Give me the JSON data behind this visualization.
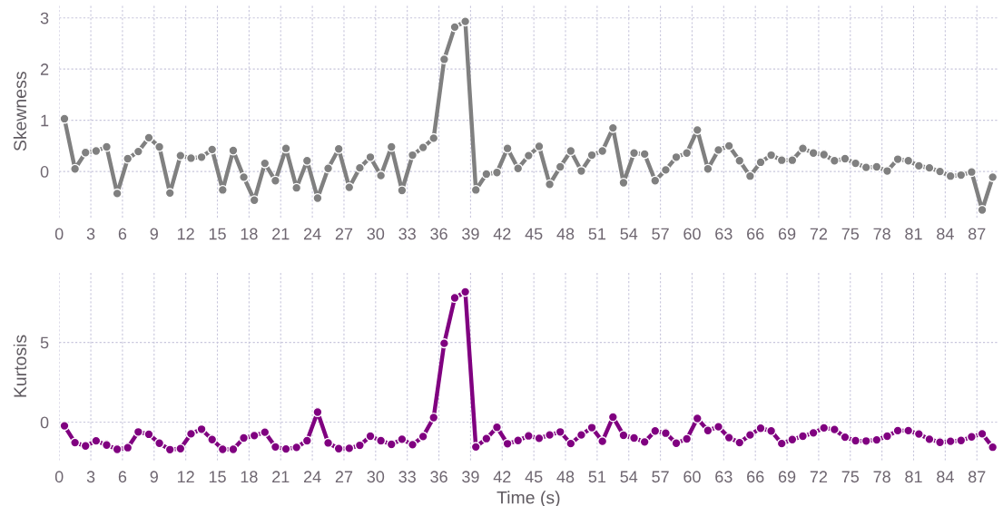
{
  "chart_data": [
    {
      "type": "line",
      "ylabel": "Skewness",
      "xlim": [
        0,
        89
      ],
      "xticks": [
        0,
        3,
        6,
        9,
        12,
        15,
        18,
        21,
        24,
        27,
        30,
        33,
        36,
        39,
        42,
        45,
        48,
        51,
        54,
        57,
        60,
        63,
        66,
        69,
        72,
        75,
        78,
        81,
        84,
        87
      ],
      "ylim": [
        -0.9,
        3.25
      ],
      "yticks": [
        0,
        1,
        2,
        3
      ],
      "grid": true,
      "marker": "circle",
      "line_style": "solid",
      "x": [
        0.5,
        1.5,
        2.5,
        3.5,
        4.5,
        5.5,
        6.5,
        7.5,
        8.5,
        9.5,
        10.5,
        11.5,
        12.5,
        13.5,
        14.5,
        15.5,
        16.5,
        17.5,
        18.5,
        19.5,
        20.5,
        21.5,
        22.5,
        23.5,
        24.5,
        25.5,
        26.5,
        27.5,
        28.5,
        29.5,
        30.5,
        31.5,
        32.5,
        33.5,
        34.5,
        35.5,
        36.5,
        37.5,
        38.5,
        39.5,
        40.5,
        41.5,
        42.5,
        43.5,
        44.5,
        45.5,
        46.5,
        47.5,
        48.5,
        49.5,
        50.5,
        51.5,
        52.5,
        53.5,
        54.5,
        55.5,
        56.5,
        57.5,
        58.5,
        59.5,
        60.5,
        61.5,
        62.5,
        63.5,
        64.5,
        65.5,
        66.5,
        67.5,
        68.5,
        69.5,
        70.5,
        71.5,
        72.5,
        73.5,
        74.5,
        75.5,
        76.5,
        77.5,
        78.5,
        79.5,
        80.5,
        81.5,
        82.5,
        83.5,
        84.5,
        85.5,
        86.5,
        87.5,
        88.5
      ],
      "series": [
        {
          "color": "#808080",
          "values": [
            1.03,
            0.05,
            0.37,
            0.4,
            0.48,
            -0.43,
            0.25,
            0.39,
            0.66,
            0.48,
            -0.42,
            0.31,
            0.26,
            0.28,
            0.43,
            -0.36,
            0.41,
            -0.11,
            -0.56,
            0.16,
            -0.18,
            0.45,
            -0.32,
            0.21,
            -0.52,
            0.06,
            0.44,
            -0.31,
            0.07,
            0.28,
            -0.08,
            0.48,
            -0.37,
            0.32,
            0.47,
            0.65,
            2.19,
            2.82,
            2.93,
            -0.36,
            -0.05,
            -0.02,
            0.45,
            0.06,
            0.31,
            0.49,
            -0.25,
            0.09,
            0.4,
            0.01,
            0.32,
            0.4,
            0.85,
            -0.22,
            0.36,
            0.34,
            -0.18,
            0.03,
            0.28,
            0.36,
            0.81,
            0.05,
            0.42,
            0.5,
            0.21,
            -0.09,
            0.18,
            0.32,
            0.22,
            0.22,
            0.45,
            0.36,
            0.33,
            0.21,
            0.25,
            0.16,
            0.08,
            0.09,
            0.01,
            0.24,
            0.21,
            0.11,
            0.07,
            0.0,
            -0.09,
            -0.07,
            -0.01,
            -0.75,
            -0.11
          ]
        }
      ]
    },
    {
      "type": "line",
      "xlabel": "Time (s)",
      "ylabel": "Kurtosis",
      "xlim": [
        0,
        89
      ],
      "xticks": [
        0,
        3,
        6,
        9,
        12,
        15,
        18,
        21,
        24,
        27,
        30,
        33,
        36,
        39,
        42,
        45,
        48,
        51,
        54,
        57,
        60,
        63,
        66,
        69,
        72,
        75,
        78,
        81,
        84,
        87
      ],
      "ylim": [
        -2.4,
        9.4
      ],
      "yticks": [
        0,
        5
      ],
      "grid": true,
      "marker": "circle",
      "line_style": "solid",
      "x": [
        0.5,
        1.5,
        2.5,
        3.5,
        4.5,
        5.5,
        6.5,
        7.5,
        8.5,
        9.5,
        10.5,
        11.5,
        12.5,
        13.5,
        14.5,
        15.5,
        16.5,
        17.5,
        18.5,
        19.5,
        20.5,
        21.5,
        22.5,
        23.5,
        24.5,
        25.5,
        26.5,
        27.5,
        28.5,
        29.5,
        30.5,
        31.5,
        32.5,
        33.5,
        34.5,
        35.5,
        36.5,
        37.5,
        38.5,
        39.5,
        40.5,
        41.5,
        42.5,
        43.5,
        44.5,
        45.5,
        46.5,
        47.5,
        48.5,
        49.5,
        50.5,
        51.5,
        52.5,
        53.5,
        54.5,
        55.5,
        56.5,
        57.5,
        58.5,
        59.5,
        60.5,
        61.5,
        62.5,
        63.5,
        64.5,
        65.5,
        66.5,
        67.5,
        68.5,
        69.5,
        70.5,
        71.5,
        72.5,
        73.5,
        74.5,
        75.5,
        76.5,
        77.5,
        78.5,
        79.5,
        80.5,
        81.5,
        82.5,
        83.5,
        84.5,
        85.5,
        86.5,
        87.5,
        88.5
      ],
      "series": [
        {
          "color": "#800080",
          "values": [
            -0.23,
            -1.28,
            -1.49,
            -1.17,
            -1.43,
            -1.7,
            -1.6,
            -0.61,
            -0.76,
            -1.32,
            -1.72,
            -1.66,
            -0.73,
            -0.44,
            -1.09,
            -1.7,
            -1.7,
            -0.99,
            -0.84,
            -0.63,
            -1.55,
            -1.68,
            -1.58,
            -1.16,
            0.63,
            -1.3,
            -1.66,
            -1.64,
            -1.45,
            -0.88,
            -1.16,
            -1.39,
            -1.07,
            -1.41,
            -0.9,
            0.29,
            4.94,
            7.79,
            8.17,
            -1.55,
            -1.03,
            -0.32,
            -1.35,
            -1.15,
            -0.86,
            -1.01,
            -0.8,
            -0.61,
            -1.34,
            -0.8,
            -0.34,
            -1.2,
            0.32,
            -0.82,
            -0.99,
            -1.24,
            -0.55,
            -0.69,
            -1.32,
            -1.05,
            0.23,
            -0.52,
            -0.29,
            -0.97,
            -1.28,
            -0.8,
            -0.38,
            -0.55,
            -1.34,
            -1.09,
            -0.88,
            -0.67,
            -0.36,
            -0.46,
            -0.94,
            -1.16,
            -1.18,
            -1.11,
            -0.88,
            -0.53,
            -0.53,
            -0.74,
            -1.07,
            -1.26,
            -1.2,
            -1.15,
            -0.92,
            -0.73,
            -1.57
          ]
        }
      ]
    }
  ]
}
